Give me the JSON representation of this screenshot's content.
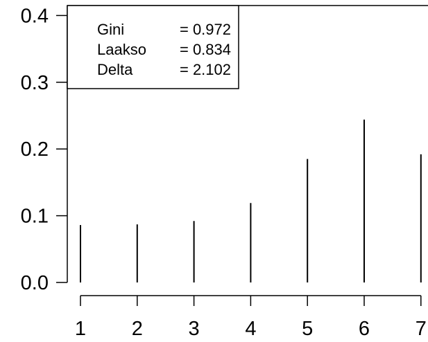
{
  "chart_data": {
    "type": "bar",
    "style": "spike",
    "x": [
      1,
      2,
      3,
      4,
      5,
      6,
      7
    ],
    "values": [
      0.086,
      0.087,
      0.092,
      0.119,
      0.185,
      0.244,
      0.192
    ],
    "ylim": [
      0,
      0.4
    ],
    "xlim": [
      1,
      7
    ],
    "yticks": [
      "0.0",
      "0.1",
      "0.2",
      "0.3",
      "0.4"
    ],
    "xticks": [
      "1",
      "2",
      "3",
      "4",
      "5",
      "6",
      "7"
    ],
    "grid": false,
    "legend_position": "top-left",
    "legend": [
      {
        "label": "Gini",
        "value": "= 0.972"
      },
      {
        "label": "Laakso",
        "value": "= 0.834"
      },
      {
        "label": "Delta",
        "value": "= 2.102"
      }
    ],
    "colors": {
      "mark": "#000000",
      "background": "#ffffff"
    }
  }
}
